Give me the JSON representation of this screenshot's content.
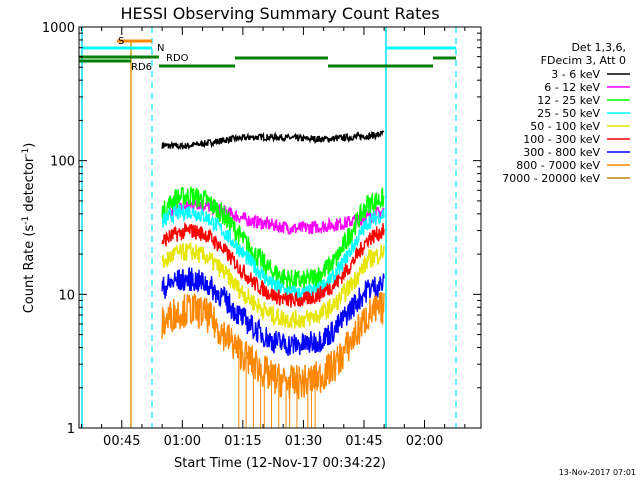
{
  "chart_data": {
    "type": "line",
    "title": "HESSI Observing Summary Count Rates",
    "xlabel": "Start Time (12-Nov-17 00:34:22)",
    "ylabel_main": "Count Rate (s",
    "ylabel_sup1": "-1",
    "ylabel_mid": " detector",
    "ylabel_sup2": "-1",
    "ylabel_end": ")",
    "footer": "13-Nov-2017 07:01",
    "x_range_min": [
      34.4,
      134.0
    ],
    "ylim": [
      1,
      1000
    ],
    "y_scale": "log",
    "x_ticks": [
      {
        "min": 45,
        "label": "00:45"
      },
      {
        "min": 60,
        "label": "01:00"
      },
      {
        "min": 75,
        "label": "01:15"
      },
      {
        "min": 90,
        "label": "01:30"
      },
      {
        "min": 105,
        "label": "01:45"
      },
      {
        "min": 120,
        "label": "02:00"
      }
    ],
    "y_ticks": [
      {
        "value": 1,
        "label": "1"
      },
      {
        "value": 10,
        "label": "10"
      },
      {
        "value": 100,
        "label": "100"
      },
      {
        "value": 1000,
        "label": "1000"
      }
    ],
    "legend": {
      "header1": "Det 1,3,6,",
      "header2": "FDecim 3, Att 0",
      "entries": [
        {
          "label": "3 - 6 keV",
          "color": "#000000"
        },
        {
          "label": "6 - 12 keV",
          "color": "#ff00ff"
        },
        {
          "label": "12 - 25 keV",
          "color": "#00ff00"
        },
        {
          "label": "25 - 50 keV",
          "color": "#00ffff"
        },
        {
          "label": "50 - 100 keV",
          "color": "#e6e600"
        },
        {
          "label": "100 - 300 keV",
          "color": "#ff0000"
        },
        {
          "label": "300 - 800 keV",
          "color": "#0000ff"
        },
        {
          "label": "800 - 7000 keV",
          "color": "#ff8800"
        },
        {
          "label": "7000 - 20000 keV",
          "color": "#b8860b"
        }
      ]
    },
    "flags": {
      "saa_label": "S",
      "night_label": "N",
      "decimation_label": "RD6",
      "rdo_label": "RDO"
    },
    "series": [
      {
        "name": "3 - 6 keV",
        "color": "#000000",
        "x": [
          55,
          60,
          66,
          72,
          78,
          84,
          90,
          96,
          102,
          108,
          110
        ],
        "y": [
          130,
          128,
          135,
          145,
          150,
          150,
          146,
          145,
          150,
          155,
          160
        ]
      },
      {
        "name": "6 - 12 keV",
        "color": "#ff00ff",
        "x": [
          57,
          60,
          64,
          70,
          76,
          82,
          88,
          94,
          100,
          106,
          110
        ],
        "y": [
          40,
          45,
          48,
          42,
          36,
          33,
          31,
          32,
          34,
          38,
          42
        ]
      },
      {
        "name": "12 - 25 keV",
        "color": "#00ff00",
        "x": [
          55,
          58,
          62,
          66,
          70,
          74,
          78,
          82,
          86,
          90,
          94,
          98,
          102,
          106,
          110
        ],
        "y": [
          40,
          52,
          55,
          50,
          40,
          28,
          20,
          15,
          13,
          12.5,
          14,
          18,
          30,
          48,
          52
        ]
      },
      {
        "name": "25 - 50 keV",
        "color": "#00ffff",
        "x": [
          55,
          58,
          62,
          66,
          70,
          74,
          78,
          82,
          86,
          90,
          94,
          98,
          102,
          106,
          110
        ],
        "y": [
          35,
          40,
          42,
          38,
          30,
          22,
          16,
          12,
          10.5,
          10,
          11,
          14,
          22,
          35,
          40
        ]
      },
      {
        "name": "100 - 300 keV",
        "color": "#ff0000",
        "x": [
          55,
          58,
          62,
          66,
          70,
          74,
          78,
          82,
          86,
          90,
          94,
          98,
          102,
          106,
          110
        ],
        "y": [
          25,
          28,
          30,
          28,
          22,
          16,
          12,
          10,
          9,
          9,
          10,
          12,
          17,
          26,
          30
        ]
      },
      {
        "name": "50 - 100 keV",
        "color": "#e6e600",
        "x": [
          55,
          58,
          62,
          66,
          70,
          74,
          78,
          82,
          86,
          90,
          94,
          98,
          102,
          106,
          110
        ],
        "y": [
          17,
          20,
          21,
          19,
          15,
          11,
          8.5,
          7,
          6.5,
          6.5,
          7,
          8.5,
          12,
          18,
          21
        ]
      },
      {
        "name": "300 - 800 keV",
        "color": "#0000ff",
        "x": [
          55,
          58,
          62,
          66,
          70,
          74,
          78,
          82,
          86,
          90,
          94,
          98,
          102,
          106,
          110
        ],
        "y": [
          11,
          12.5,
          13,
          12,
          9.5,
          7,
          5.5,
          4.5,
          4.2,
          4.2,
          4.5,
          5.5,
          8,
          11,
          12
        ]
      },
      {
        "name": "800 - 7000 keV",
        "color": "#ff8800",
        "x": [
          55,
          58,
          62,
          66,
          70,
          74,
          78,
          82,
          86,
          90,
          94,
          98,
          102,
          106,
          110
        ],
        "y": [
          6,
          7.2,
          7.8,
          7,
          5.2,
          3.8,
          3,
          2.4,
          2.2,
          2.2,
          2.4,
          3,
          4.5,
          7,
          8
        ]
      }
    ]
  }
}
